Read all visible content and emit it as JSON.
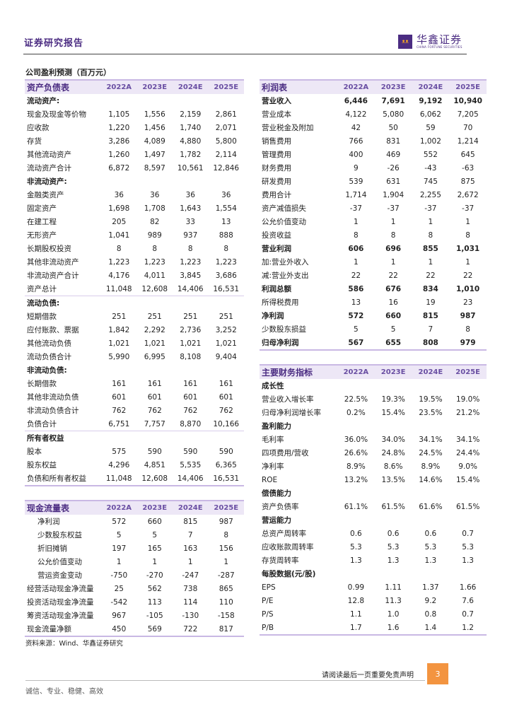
{
  "header": {
    "report_type": "证券研究报告",
    "logo_cn": "华鑫证券",
    "logo_en": "CHINA FORTUNE SECURITIES",
    "brand_color": "#4b2c82"
  },
  "caption": "公司盈利预测（百万元）",
  "years": [
    "2022A",
    "2023E",
    "2024E",
    "2025E"
  ],
  "balance_sheet": {
    "title": "资产负债表",
    "rows": [
      {
        "label": "流动资产:",
        "type": "section",
        "values": []
      },
      {
        "label": "现金及现金等价物",
        "values": [
          "1,105",
          "1,556",
          "2,159",
          "2,861"
        ]
      },
      {
        "label": "应收款",
        "values": [
          "1,220",
          "1,456",
          "1,740",
          "2,071"
        ]
      },
      {
        "label": "存货",
        "values": [
          "3,286",
          "4,089",
          "4,880",
          "5,800"
        ]
      },
      {
        "label": "其他流动资产",
        "values": [
          "1,260",
          "1,497",
          "1,782",
          "2,114"
        ]
      },
      {
        "label": "流动资产合计",
        "values": [
          "6,872",
          "8,597",
          "10,561",
          "12,846"
        ]
      },
      {
        "label": "非流动资产:",
        "type": "section",
        "values": []
      },
      {
        "label": "金融类资产",
        "values": [
          "36",
          "36",
          "36",
          "36"
        ]
      },
      {
        "label": "固定资产",
        "values": [
          "1,698",
          "1,708",
          "1,643",
          "1,554"
        ]
      },
      {
        "label": "在建工程",
        "values": [
          "205",
          "82",
          "33",
          "13"
        ]
      },
      {
        "label": "无形资产",
        "values": [
          "1,041",
          "989",
          "937",
          "888"
        ]
      },
      {
        "label": "长期股权投资",
        "values": [
          "8",
          "8",
          "8",
          "8"
        ]
      },
      {
        "label": "其他非流动资产",
        "values": [
          "1,223",
          "1,223",
          "1,223",
          "1,223"
        ]
      },
      {
        "label": "非流动资产合计",
        "values": [
          "4,176",
          "4,011",
          "3,845",
          "3,686"
        ]
      },
      {
        "label": "资产总计",
        "type": "sep",
        "values": [
          "11,048",
          "12,608",
          "14,406",
          "16,531"
        ]
      },
      {
        "label": "流动负债:",
        "type": "section",
        "values": []
      },
      {
        "label": "短期借款",
        "values": [
          "251",
          "251",
          "251",
          "251"
        ]
      },
      {
        "label": "应付账款、票据",
        "values": [
          "1,842",
          "2,292",
          "2,736",
          "3,252"
        ]
      },
      {
        "label": "其他流动负债",
        "values": [
          "1,021",
          "1,021",
          "1,021",
          "1,021"
        ]
      },
      {
        "label": "流动负债合计",
        "values": [
          "5,990",
          "6,995",
          "8,108",
          "9,404"
        ]
      },
      {
        "label": "非流动负债:",
        "type": "section",
        "values": []
      },
      {
        "label": "长期借款",
        "values": [
          "161",
          "161",
          "161",
          "161"
        ]
      },
      {
        "label": "其他非流动负债",
        "values": [
          "601",
          "601",
          "601",
          "601"
        ]
      },
      {
        "label": "非流动负债合计",
        "values": [
          "762",
          "762",
          "762",
          "762"
        ]
      },
      {
        "label": "负债合计",
        "type": "sep",
        "values": [
          "6,751",
          "7,757",
          "8,870",
          "10,166"
        ]
      },
      {
        "label": "所有者权益",
        "type": "section",
        "values": []
      },
      {
        "label": "股本",
        "values": [
          "575",
          "590",
          "590",
          "590"
        ]
      },
      {
        "label": "股东权益",
        "values": [
          "4,296",
          "4,851",
          "5,535",
          "6,365"
        ]
      },
      {
        "label": "负债和所有者权益",
        "values": [
          "11,048",
          "12,608",
          "14,406",
          "16,531"
        ]
      }
    ]
  },
  "cash_flow": {
    "title": "现金流量表",
    "rows": [
      {
        "label": "净利润",
        "type": "indent",
        "values": [
          "572",
          "660",
          "815",
          "987"
        ]
      },
      {
        "label": "少数股东权益",
        "type": "indent",
        "values": [
          "5",
          "5",
          "7",
          "8"
        ]
      },
      {
        "label": "折旧摊销",
        "type": "indent",
        "values": [
          "197",
          "165",
          "163",
          "156"
        ]
      },
      {
        "label": "公允价值变动",
        "type": "indent",
        "values": [
          "1",
          "1",
          "1",
          "1"
        ]
      },
      {
        "label": "营运资金变动",
        "type": "indent",
        "values": [
          "-750",
          "-270",
          "-247",
          "-287"
        ]
      },
      {
        "label": "经营活动现金净流量",
        "values": [
          "25",
          "562",
          "738",
          "865"
        ]
      },
      {
        "label": "投资活动现金净流量",
        "values": [
          "-542",
          "113",
          "114",
          "110"
        ]
      },
      {
        "label": "筹资活动现金净流量",
        "values": [
          "967",
          "-105",
          "-130",
          "-158"
        ]
      },
      {
        "label": "现金流量净额",
        "values": [
          "450",
          "569",
          "722",
          "817"
        ]
      }
    ]
  },
  "income_statement": {
    "title": "利润表",
    "rows": [
      {
        "label": "营业收入",
        "type": "bold",
        "values": [
          "6,446",
          "7,691",
          "9,192",
          "10,940"
        ]
      },
      {
        "label": "营业成本",
        "values": [
          "4,122",
          "5,080",
          "6,062",
          "7,205"
        ]
      },
      {
        "label": "营业税金及附加",
        "values": [
          "42",
          "50",
          "59",
          "70"
        ]
      },
      {
        "label": "销售费用",
        "values": [
          "766",
          "831",
          "1,002",
          "1,214"
        ]
      },
      {
        "label": "管理费用",
        "values": [
          "400",
          "469",
          "552",
          "645"
        ]
      },
      {
        "label": "财务费用",
        "values": [
          "9",
          "-26",
          "-43",
          "-63"
        ]
      },
      {
        "label": "研发费用",
        "values": [
          "539",
          "631",
          "745",
          "875"
        ]
      },
      {
        "label": "费用合计",
        "values": [
          "1,714",
          "1,904",
          "2,255",
          "2,672"
        ]
      },
      {
        "label": "资产减值损失",
        "values": [
          "-37",
          "-37",
          "-37",
          "-37"
        ]
      },
      {
        "label": "公允价值变动",
        "values": [
          "1",
          "1",
          "1",
          "1"
        ]
      },
      {
        "label": "投资收益",
        "values": [
          "8",
          "8",
          "8",
          "8"
        ]
      },
      {
        "label": "营业利润",
        "type": "bold",
        "values": [
          "606",
          "696",
          "855",
          "1,031"
        ]
      },
      {
        "label": "加:营业外收入",
        "values": [
          "1",
          "1",
          "1",
          "1"
        ]
      },
      {
        "label": "减:营业外支出",
        "values": [
          "22",
          "22",
          "22",
          "22"
        ]
      },
      {
        "label": "利润总额",
        "type": "bold",
        "values": [
          "586",
          "676",
          "834",
          "1,010"
        ]
      },
      {
        "label": "所得税费用",
        "values": [
          "13",
          "16",
          "19",
          "23"
        ]
      },
      {
        "label": "净利润",
        "type": "bold",
        "values": [
          "572",
          "660",
          "815",
          "987"
        ]
      },
      {
        "label": "少数股东损益",
        "values": [
          "5",
          "5",
          "7",
          "8"
        ]
      },
      {
        "label": "归母净利润",
        "type": "bold",
        "values": [
          "567",
          "655",
          "808",
          "979"
        ]
      }
    ]
  },
  "key_indicators": {
    "title": "主要财务指标",
    "rows": [
      {
        "label": "成长性",
        "type": "section",
        "values": []
      },
      {
        "label": "营业收入增长率",
        "values": [
          "22.5%",
          "19.3%",
          "19.5%",
          "19.0%"
        ]
      },
      {
        "label": "归母净利润增长率",
        "values": [
          "0.2%",
          "15.4%",
          "23.5%",
          "21.2%"
        ]
      },
      {
        "label": "盈利能力",
        "type": "section",
        "values": []
      },
      {
        "label": "毛利率",
        "values": [
          "36.0%",
          "34.0%",
          "34.1%",
          "34.1%"
        ]
      },
      {
        "label": "四项费用/营收",
        "values": [
          "26.6%",
          "24.8%",
          "24.5%",
          "24.4%"
        ]
      },
      {
        "label": "净利率",
        "values": [
          "8.9%",
          "8.6%",
          "8.9%",
          "9.0%"
        ]
      },
      {
        "label": "ROE",
        "values": [
          "13.2%",
          "13.5%",
          "14.6%",
          "15.4%"
        ]
      },
      {
        "label": "偿债能力",
        "type": "section",
        "values": []
      },
      {
        "label": "资产负债率",
        "values": [
          "61.1%",
          "61.5%",
          "61.6%",
          "61.5%"
        ]
      },
      {
        "label": "营运能力",
        "type": "section",
        "values": []
      },
      {
        "label": "总资产周转率",
        "values": [
          "0.6",
          "0.6",
          "0.6",
          "0.7"
        ]
      },
      {
        "label": "应收账款周转率",
        "values": [
          "5.3",
          "5.3",
          "5.3",
          "5.3"
        ]
      },
      {
        "label": "存货周转率",
        "values": [
          "1.3",
          "1.3",
          "1.3",
          "1.3"
        ]
      },
      {
        "label": "每股数据(元/股)",
        "type": "section",
        "values": []
      },
      {
        "label": "EPS",
        "values": [
          "0.99",
          "1.11",
          "1.37",
          "1.66"
        ]
      },
      {
        "label": "P/E",
        "values": [
          "12.8",
          "11.3",
          "9.2",
          "7.6"
        ]
      },
      {
        "label": "P/S",
        "values": [
          "1.1",
          "1.0",
          "0.8",
          "0.7"
        ]
      },
      {
        "label": "P/B",
        "values": [
          "1.7",
          "1.6",
          "1.4",
          "1.2"
        ]
      }
    ]
  },
  "source": "资料来源：Wind、华鑫证券研究",
  "footer": {
    "disclaimer": "请阅读最后一页重要免责声明",
    "page": "3",
    "page_color": "#f39440",
    "motto": "诚信、专业、稳健、高效"
  }
}
